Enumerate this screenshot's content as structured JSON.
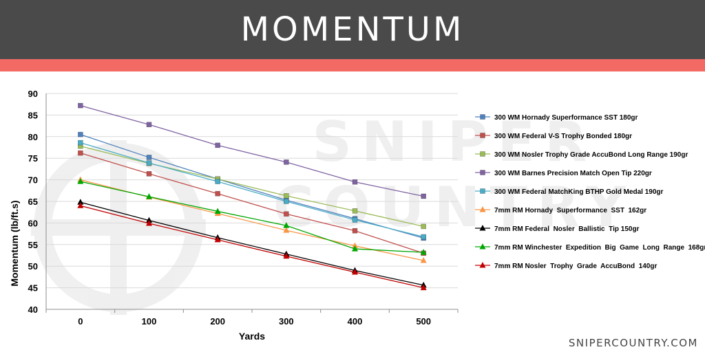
{
  "header": {
    "title": "MOMENTUM"
  },
  "footer": {
    "site": "SNIPERCOUNTRY.COM"
  },
  "watermark": {
    "text": "SNIPER COUNTRY"
  },
  "colors": {
    "header_bg": "#4a4a4a",
    "accent_bar": "#f26a63",
    "grid": "#d9d9d9"
  },
  "chart_data": {
    "type": "line",
    "title": "",
    "xlabel": "Yards",
    "ylabel": "Momentum (lb/ft.s)",
    "ylim": [
      40,
      90
    ],
    "yticks": [
      40,
      45,
      50,
      55,
      60,
      65,
      70,
      75,
      80,
      85,
      90
    ],
    "x": [
      0,
      100,
      200,
      300,
      400,
      500
    ],
    "grid": true,
    "legend_position": "right",
    "series": [
      {
        "name": "300 WM Hornady Superformance SST 180gr",
        "color": "#4f81bd",
        "marker": "square",
        "values": [
          80.5,
          75.2,
          70.2,
          65.3,
          61.0,
          56.5
        ]
      },
      {
        "name": "300 WM Federal V-S Trophy Bonded 180gr",
        "color": "#c0504d",
        "marker": "square",
        "values": [
          76.2,
          71.4,
          66.8,
          62.1,
          58.2,
          53.0
        ]
      },
      {
        "name": "300 WM Nosler Trophy Grade AccuBond Long Range 190gr",
        "color": "#9bbb59",
        "marker": "square",
        "values": [
          77.8,
          73.8,
          70.2,
          66.3,
          62.8,
          59.2
        ]
      },
      {
        "name": "300 WM Barnes Precision Match Open Tip 220gr",
        "color": "#8064a2",
        "marker": "square",
        "values": [
          87.2,
          82.8,
          78.0,
          74.1,
          69.5,
          66.2
        ]
      },
      {
        "name": "300 WM Federal MatchKing BTHP Gold Medal 190gr",
        "color": "#4bacc6",
        "marker": "square",
        "values": [
          78.6,
          73.9,
          69.6,
          65.0,
          60.7,
          56.8
        ]
      },
      {
        "name": "7mm RM Hornady  Superformance  SST  162gr",
        "color": "#f79646",
        "marker": "triangle",
        "values": [
          70.0,
          66.0,
          62.2,
          58.3,
          54.7,
          51.3
        ]
      },
      {
        "name": "7mm RM Federal  Nosler  Ballistic  Tip 150gr",
        "color": "#000000",
        "marker": "triangle",
        "values": [
          64.8,
          60.6,
          56.6,
          52.8,
          49.0,
          45.6
        ]
      },
      {
        "name": "7mm RM Winchester  Expedition  Big  Game  Long  Range  168gr",
        "color": "#00a600",
        "marker": "triangle",
        "values": [
          69.6,
          66.1,
          62.7,
          59.4,
          54.0,
          53.2
        ]
      },
      {
        "name": "7mm RM Nosler  Trophy  Grade  AccuBond  140gr",
        "color": "#c00000",
        "marker": "triangle",
        "values": [
          64.0,
          59.9,
          56.1,
          52.3,
          48.6,
          45.0
        ]
      }
    ]
  }
}
